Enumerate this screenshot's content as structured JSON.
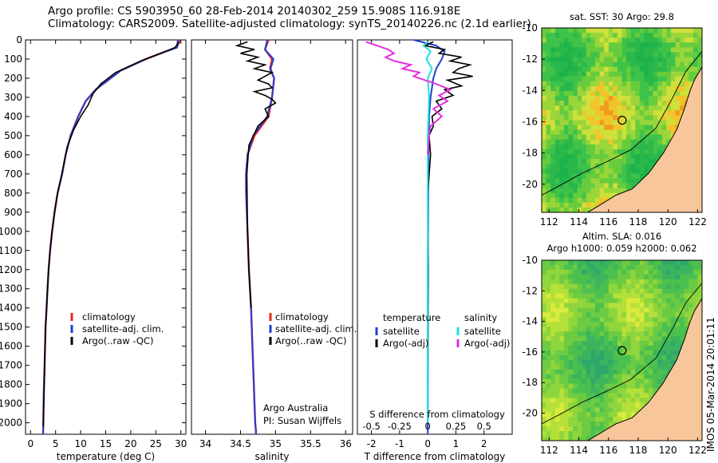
{
  "header": {
    "line1": "Argo profile: CS 5903950_60 28-Feb-2014 20140302_259 15.908S 116.918E",
    "line2": "Climatology: CARS2009. Satellite-adjusted climatology: synTS_20140226.nc (2.1d earlier)"
  },
  "stamp": "IMOS 05-Mar-2014 20:01:11",
  "colors": {
    "climatology": "#e8251f",
    "satellite": "#1f3fd6",
    "argo": "#000000",
    "sal_satellite": "#22dde0",
    "sal_argo": "#e52fe0",
    "land": "#f7c79b"
  },
  "chart_data": [
    {
      "name": "temperature",
      "type": "line",
      "xlabel": "temperature (deg C)",
      "xlim": [
        -1,
        31
      ],
      "xticks": [
        0,
        5,
        10,
        15,
        20,
        25,
        30
      ],
      "ylim": [
        2060,
        0
      ],
      "yticks": [
        0,
        100,
        200,
        300,
        400,
        500,
        600,
        700,
        800,
        900,
        1000,
        1100,
        1200,
        1300,
        1400,
        1500,
        1600,
        1700,
        1800,
        1900,
        2000
      ],
      "legend": [
        "climatology",
        "satellite-adj. clim.",
        "Argo(..raw -QC)"
      ],
      "series": [
        {
          "name": "climatology",
          "x": [
            29.8,
            29.2,
            27,
            23,
            18,
            13,
            11,
            9.5,
            8,
            7,
            6.3,
            5.4,
            4.8,
            4.3,
            3.9,
            3.6,
            3.4,
            3.2,
            3,
            2.9,
            2.8,
            2.7,
            2.6,
            2.55,
            2.5
          ],
          "y": [
            0,
            40,
            60,
            100,
            160,
            260,
            320,
            400,
            500,
            600,
            700,
            800,
            900,
            1000,
            1100,
            1200,
            1300,
            1400,
            1500,
            1600,
            1700,
            1800,
            1900,
            2000,
            2060
          ]
        },
        {
          "name": "satellite-adj. clim.",
          "x": [
            29.4,
            29.2,
            27,
            23,
            18,
            13,
            11,
            9.5,
            8,
            7,
            6.3,
            5.4,
            4.8,
            4.3,
            3.9,
            3.6,
            3.4,
            3.2,
            3,
            2.9,
            2.8,
            2.7,
            2.6,
            2.55,
            2.5
          ],
          "y": [
            0,
            40,
            60,
            100,
            160,
            260,
            320,
            400,
            500,
            600,
            700,
            800,
            900,
            1000,
            1100,
            1200,
            1300,
            1400,
            1500,
            1600,
            1700,
            1800,
            1900,
            2000,
            2060
          ]
        },
        {
          "name": "Argo(..raw -QC)",
          "x": [
            29.7,
            28.8,
            26,
            22,
            17,
            14,
            12.5,
            11.5,
            10,
            8.6,
            7.3,
            6.4,
            5.4,
            4.8,
            4.3,
            3.9,
            3.6,
            3.4,
            3.2,
            3,
            2.8,
            2.65,
            2.55
          ],
          "y": [
            10,
            40,
            70,
            110,
            170,
            230,
            280,
            340,
            400,
            470,
            560,
            680,
            800,
            900,
            1000,
            1100,
            1200,
            1300,
            1400,
            1500,
            1700,
            1900,
            2020
          ]
        }
      ]
    },
    {
      "name": "salinity",
      "type": "line",
      "xlabel": "salinity",
      "xlim": [
        33.8,
        36.1
      ],
      "xticks": [
        34,
        34.5,
        35,
        35.5,
        36
      ],
      "ylim": [
        2060,
        0
      ],
      "legend": [
        "climatology",
        "satellite-adj. clim.",
        "Argo(..raw -QC)"
      ],
      "annotations": [
        "Argo Australia",
        "PI: Susan Wijffels"
      ],
      "series": [
        {
          "name": "climatology",
          "x": [
            34.9,
            34.85,
            34.95,
            34.92,
            34.98,
            34.95,
            34.9,
            34.8,
            34.7,
            34.6,
            34.58,
            34.58,
            34.6,
            34.62,
            34.65,
            34.67,
            34.69,
            34.7,
            34.71,
            34.72,
            34.72
          ],
          "y": [
            0,
            50,
            100,
            150,
            200,
            300,
            400,
            450,
            500,
            600,
            700,
            800,
            1000,
            1200,
            1400,
            1600,
            1800,
            1900,
            2000,
            2040,
            2060
          ]
        },
        {
          "name": "satellite-adj. clim.",
          "x": [
            34.88,
            34.85,
            34.97,
            34.93,
            34.98,
            34.95,
            34.88,
            34.78,
            34.68,
            34.6,
            34.58,
            34.58,
            34.6,
            34.62,
            34.65,
            34.67,
            34.69,
            34.7,
            34.71,
            34.72,
            34.72
          ],
          "y": [
            0,
            50,
            100,
            150,
            200,
            300,
            400,
            450,
            500,
            600,
            700,
            800,
            1000,
            1200,
            1400,
            1600,
            1800,
            1900,
            2000,
            2040,
            2060
          ]
        },
        {
          "name": "Argo(..raw -QC)",
          "x": [
            34.6,
            34.45,
            34.7,
            34.5,
            34.75,
            34.6,
            34.85,
            34.7,
            34.95,
            34.85,
            34.75,
            34.9,
            34.95,
            34.7,
            34.85,
            34.95,
            35,
            34.85,
            34.9,
            34.75,
            34.62,
            34.59,
            34.6,
            34.62,
            34.65
          ],
          "y": [
            10,
            30,
            50,
            70,
            90,
            110,
            130,
            150,
            170,
            190,
            210,
            230,
            250,
            270,
            290,
            310,
            330,
            360,
            400,
            450,
            550,
            700,
            1000,
            1200,
            1400
          ]
        }
      ]
    },
    {
      "name": "difference",
      "type": "line",
      "xlabel": "T difference from climatology",
      "xlabel2": "S difference from climatology",
      "xlim": [
        -2.5,
        3
      ],
      "xticks": [
        -2,
        -1,
        0,
        1,
        2
      ],
      "xticks2": [
        "-0.5",
        "-0.25",
        "0",
        "0.25",
        "0.5"
      ],
      "ylim": [
        2060,
        0
      ],
      "legend": {
        "temperature_heading": "temperature",
        "salinity_heading": "salinity",
        "t_satellite": "satellite",
        "t_argo": "Argo(-adj)",
        "s_satellite": "satellite",
        "s_argo": "Argo(-adj)"
      },
      "series": [
        {
          "name": "temperature satellite",
          "x": [
            -0.5,
            0.3,
            0.6,
            0.5,
            0.3,
            0.2,
            0.1,
            0.05,
            0.03,
            0.02,
            0,
            0
          ],
          "y": [
            0,
            30,
            60,
            100,
            150,
            200,
            300,
            400,
            600,
            800,
            1200,
            2060
          ]
        },
        {
          "name": "temperature Argo(-adj)",
          "x": [
            0.2,
            -0.1,
            0.6,
            0.4,
            1.2,
            0.8,
            1.5,
            1.1,
            0.9,
            1.6,
            0.7,
            1.2,
            0.6,
            0.9,
            0.3,
            0.5,
            0.15,
            0.2,
            0.05,
            0.1,
            0,
            0.02,
            0
          ],
          "y": [
            10,
            30,
            50,
            70,
            90,
            110,
            130,
            150,
            170,
            190,
            210,
            240,
            260,
            290,
            320,
            360,
            400,
            450,
            500,
            600,
            800,
            1200,
            2000
          ]
        },
        {
          "name": "salinity satellite",
          "x": [
            0,
            -0.15,
            0.1,
            -0.05,
            0.15,
            0,
            0.05,
            0,
            0,
            0
          ],
          "y": [
            10,
            30,
            60,
            100,
            150,
            200,
            300,
            500,
            1000,
            2000
          ]
        },
        {
          "name": "salinity Argo(-adj)",
          "x": [
            -2.2,
            -1.8,
            -1.4,
            -1.2,
            -1.5,
            -1.2,
            -0.6,
            -0.9,
            -0.3,
            -0.5,
            -0.1,
            0.3,
            0.8,
            0.4,
            0.7,
            0.2,
            0.5,
            0.1,
            0.05,
            0
          ],
          "y": [
            10,
            30,
            50,
            70,
            90,
            110,
            130,
            150,
            170,
            190,
            210,
            230,
            260,
            290,
            320,
            360,
            400,
            450,
            500,
            600
          ]
        }
      ]
    },
    {
      "name": "sst_map",
      "type": "heatmap",
      "title": "sat. SST: 30 Argo: 29.8",
      "xlim": [
        111.5,
        122.3
      ],
      "ylim": [
        -21.8,
        -10
      ],
      "xticks": [
        112,
        114,
        116,
        118,
        120,
        122
      ],
      "yticks": [
        -10,
        -12,
        -14,
        -16,
        -18,
        -20
      ],
      "marker": {
        "lon": 116.918,
        "lat": -15.908
      }
    },
    {
      "name": "sla_map",
      "type": "heatmap",
      "title": "Altim. SLA: 0.016",
      "subtitle": "Argo h1000: 0.059 h2000: 0.062",
      "xlim": [
        111.5,
        122.3
      ],
      "ylim": [
        -21.8,
        -10
      ],
      "xticks": [
        112,
        114,
        116,
        118,
        120,
        122
      ],
      "yticks": [
        -10,
        -12,
        -14,
        -16,
        -18,
        -20
      ],
      "marker": {
        "lon": 116.918,
        "lat": -15.908
      }
    }
  ]
}
